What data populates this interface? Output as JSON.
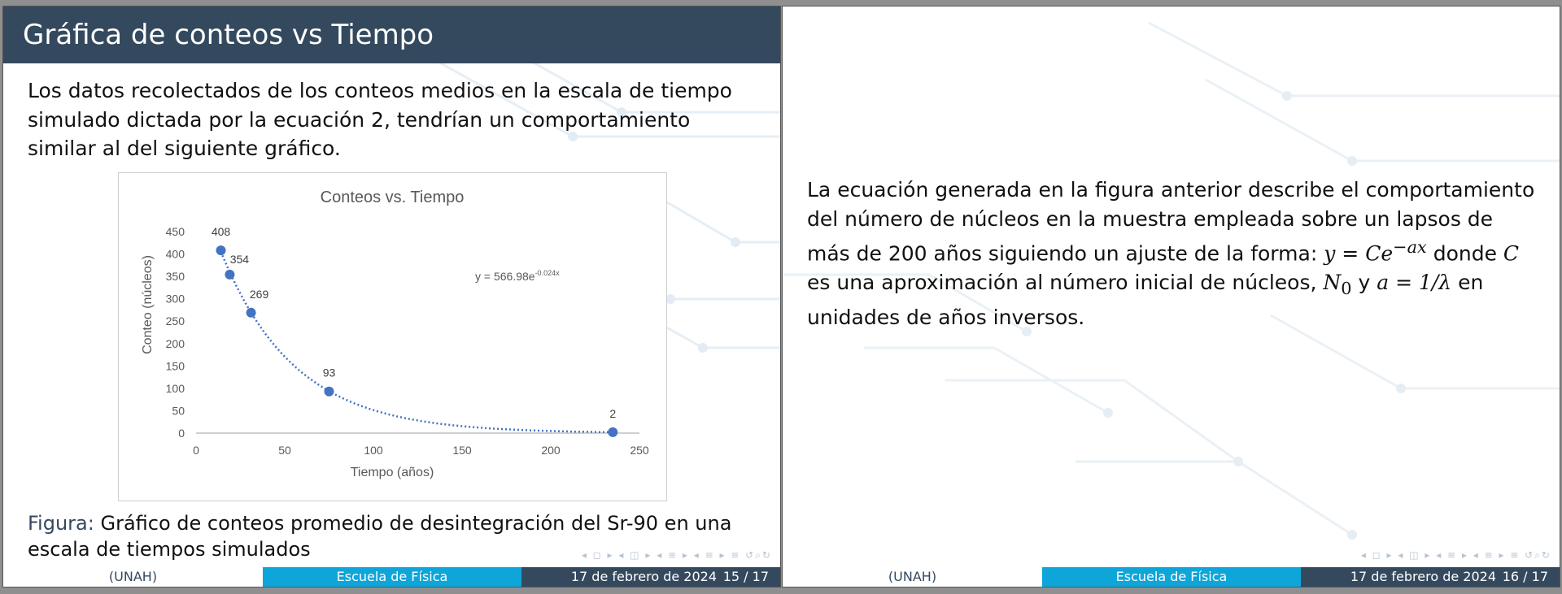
{
  "slides": [
    {
      "title": "Gráfica de conteos vs Tiempo",
      "paragraph": "Los datos recolectados de los conteos medios en la escala de tiempo simulado dictada por la ecuación 2, tendrían un comportamiento similar al del siguiente gráfico.",
      "caption_label": "Figura:",
      "caption_text": "Gráfico de conteos promedio de desintegración del Sr-90 en una escala de tiempos simulados",
      "footer": {
        "left": "(UNAH)",
        "center": "Escuela de Física",
        "date": "17 de febrero de 2024",
        "page": "15 / 17"
      }
    },
    {
      "para_part1": "La ecuación generada en la figura anterior describe el comportamiento del número de núcleos en la muestra empleada sobre un lapsos de más de 200 años siguiendo un ajuste de la forma:",
      "eq_y": "y",
      "eq_equals": "=",
      "eq_C": "Ce",
      "eq_exp": "−ax",
      "para_part2": "donde",
      "eq_C2": "C",
      "para_part3": "es una aproximación al número inicial de núcleos,",
      "eq_N": "N",
      "eq_N_sub": "0",
      "para_part4": "y",
      "eq_a": "a = 1/λ",
      "para_part5": "en unidades de años inversos.",
      "footer": {
        "left": "(UNAH)",
        "center": "Escuela de Física",
        "date": "17 de febrero de 2024",
        "page": "16 / 17"
      }
    }
  ],
  "nav_glyphs": "◂ ◻ ▸ ◂ ◫ ▸ ◂ ≡ ▸ ◂ ≡ ▸ ≡ ↺⌕↻",
  "chart_data": {
    "type": "scatter",
    "title": "Conteos vs. Tiempo",
    "xlabel": "Tiempo (años)",
    "ylabel": "Conteo (núcleos)",
    "xlim": [
      0,
      250
    ],
    "ylim": [
      0,
      450
    ],
    "x_ticks": [
      0,
      50,
      100,
      150,
      200,
      250
    ],
    "y_ticks": [
      0,
      50,
      100,
      150,
      200,
      250,
      300,
      350,
      400,
      450
    ],
    "x": [
      14,
      19,
      31,
      75,
      235
    ],
    "y": [
      408,
      354,
      269,
      93,
      2
    ],
    "labels": [
      "408",
      "354",
      "269",
      "93",
      "2"
    ],
    "trendline": {
      "type": "exponential",
      "C": 566.98,
      "a": 0.024,
      "label": "y = 566.98e",
      "label_exp": "-0.024x"
    },
    "marker_color": "#4472c4"
  }
}
